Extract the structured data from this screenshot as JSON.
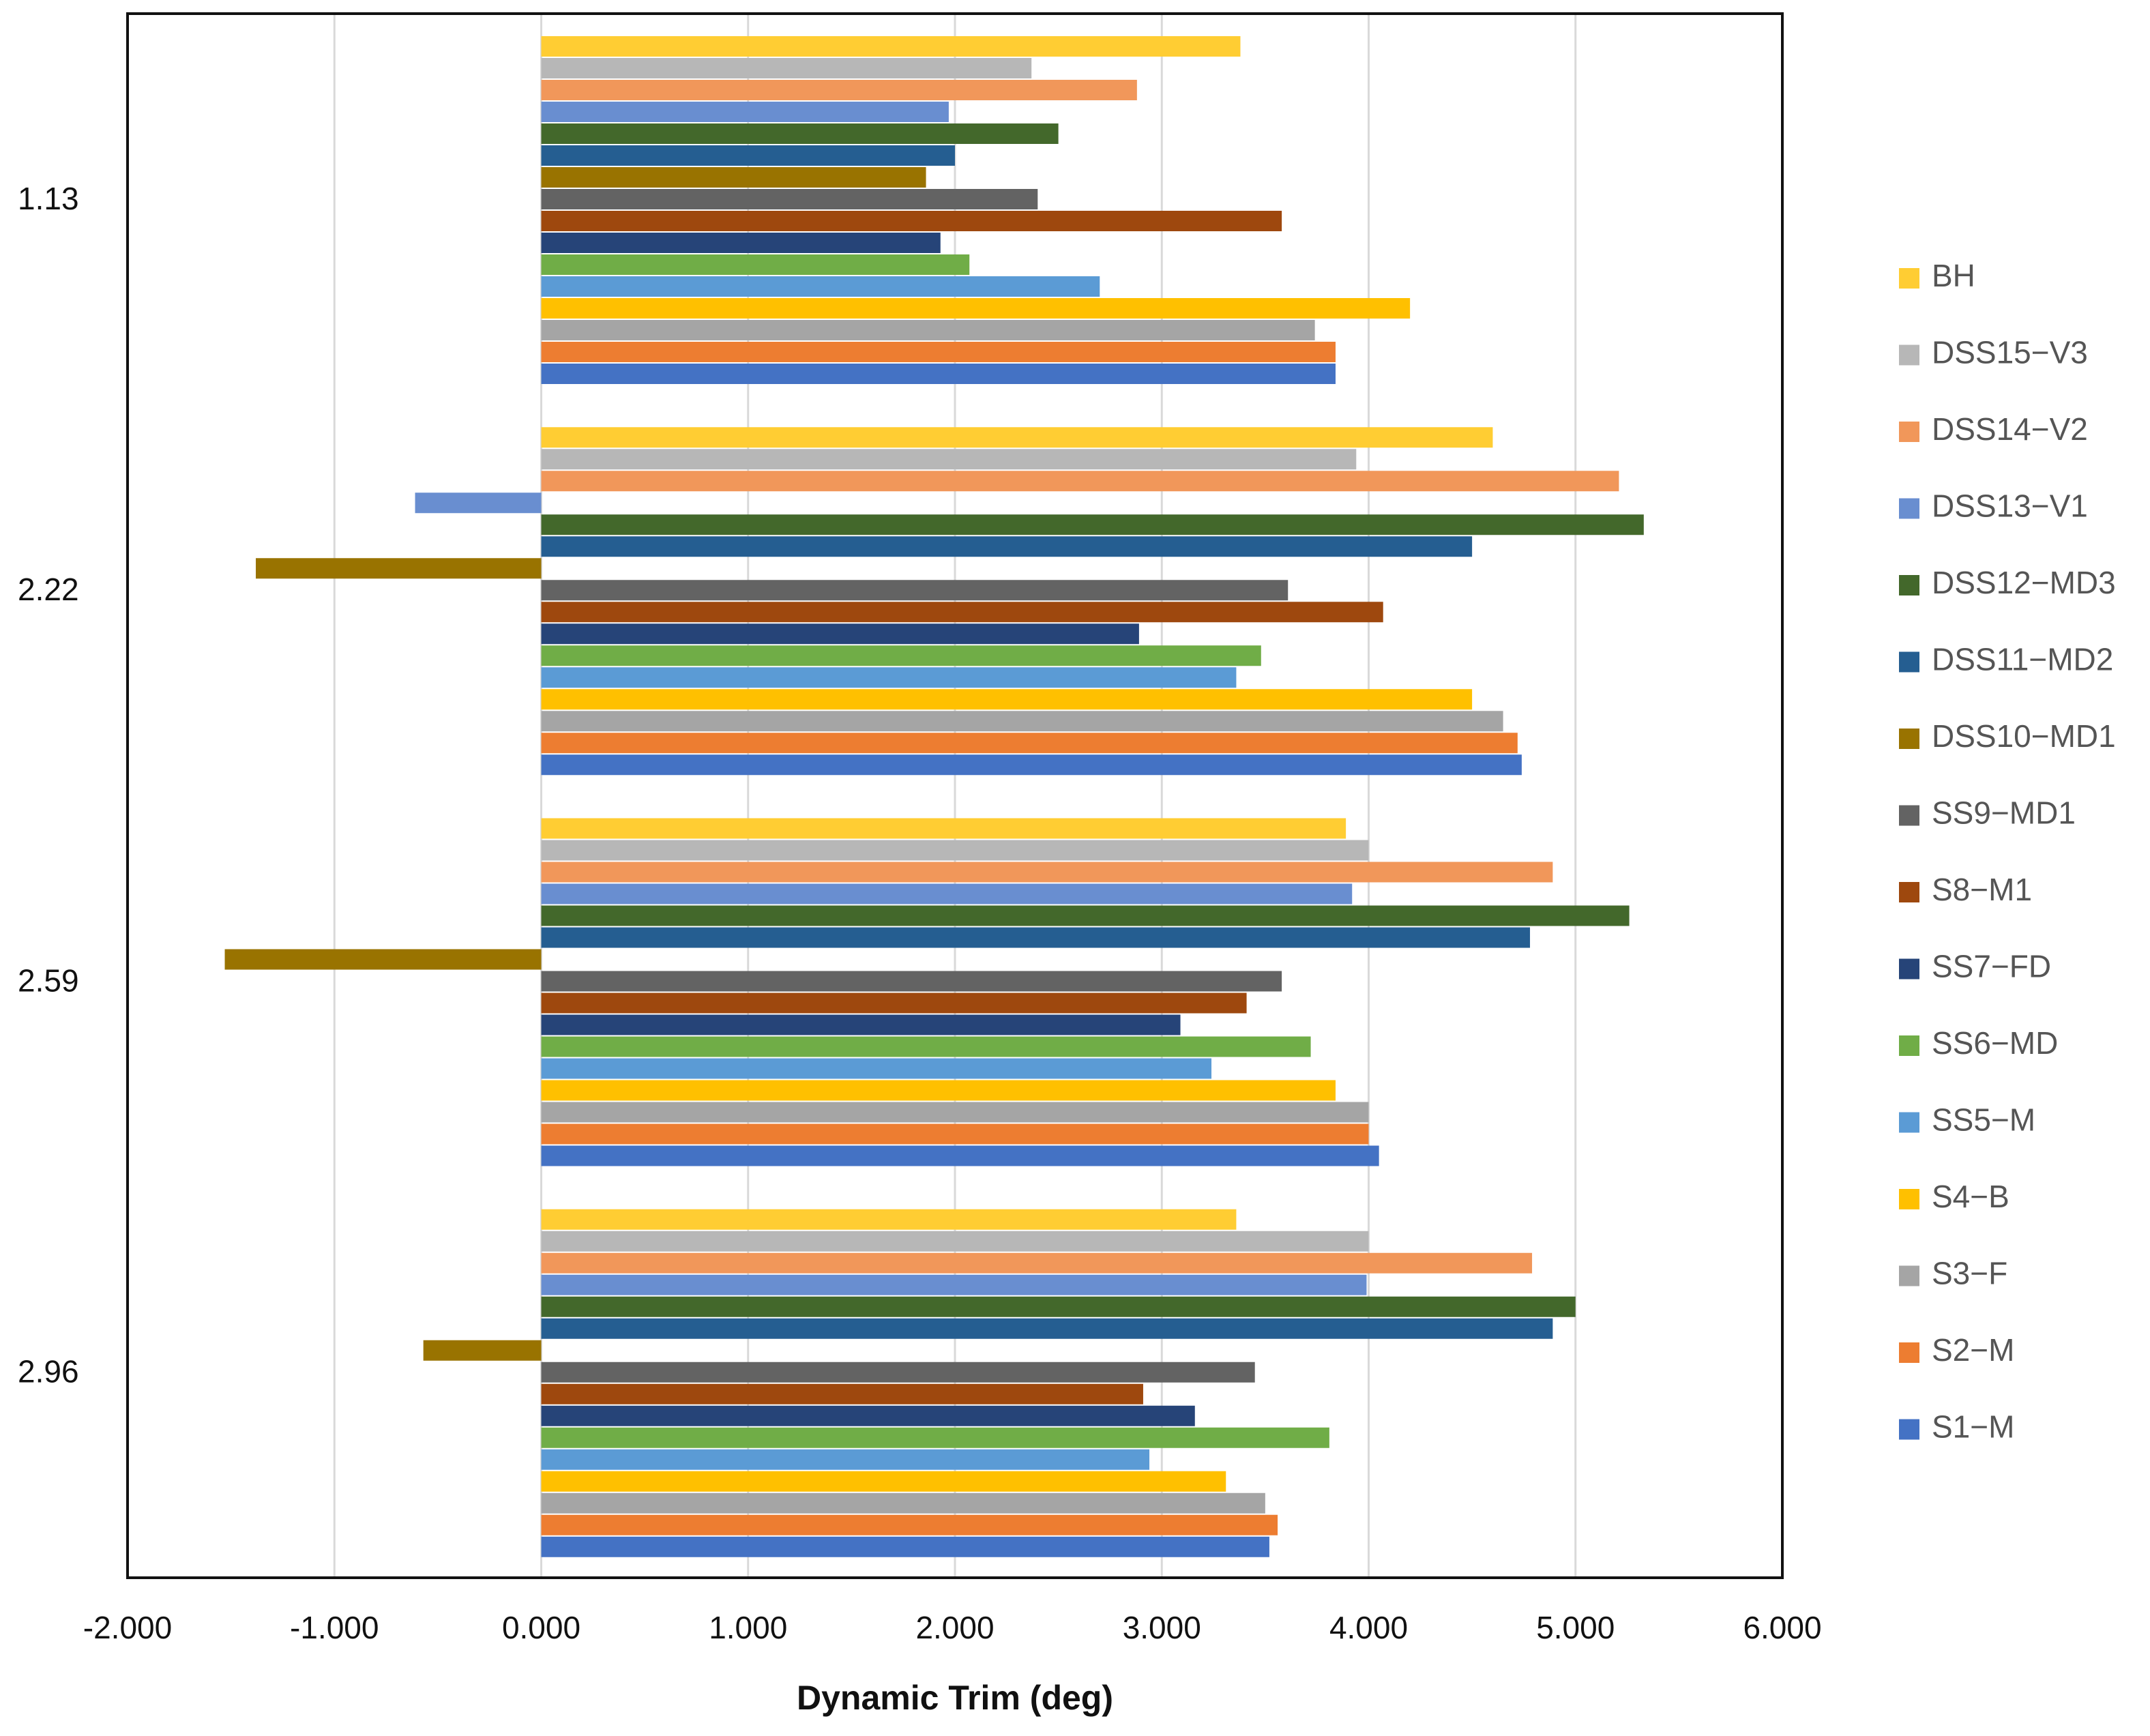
{
  "chart_data": {
    "type": "bar",
    "orientation": "horizontal",
    "title": "",
    "xlabel": "Dynamic Trim (deg)",
    "ylabel": "",
    "xlim": [
      -2,
      6
    ],
    "x_ticks": [
      -2,
      -1,
      0,
      1,
      2,
      3,
      4,
      5,
      6
    ],
    "x_tick_labels": [
      "-2.000",
      "-1.000",
      "0.000",
      "1.000",
      "2.000",
      "3.000",
      "4.000",
      "5.000",
      "6.000"
    ],
    "grid": "vertical",
    "legend_position": "right",
    "categories": [
      "1.13",
      "2.22",
      "2.59",
      "2.96"
    ],
    "series": [
      {
        "name": "S1−M",
        "color": "#4472C4",
        "values": [
          3.84,
          4.74,
          4.05,
          3.52
        ]
      },
      {
        "name": "S2−M",
        "color": "#ED7D31",
        "values": [
          3.84,
          4.72,
          4.0,
          3.56
        ]
      },
      {
        "name": "S3−F",
        "color": "#A5A5A5",
        "values": [
          3.74,
          4.65,
          4.0,
          3.5
        ]
      },
      {
        "name": "S4−B",
        "color": "#FFC000",
        "values": [
          4.2,
          4.5,
          3.84,
          3.31
        ]
      },
      {
        "name": "SS5−M",
        "color": "#5B9BD5",
        "values": [
          2.7,
          3.36,
          3.24,
          2.94
        ]
      },
      {
        "name": "SS6−MD",
        "color": "#70AD47",
        "values": [
          2.07,
          3.48,
          3.72,
          3.81
        ]
      },
      {
        "name": "SS7−FD",
        "color": "#264478",
        "values": [
          1.93,
          2.89,
          3.09,
          3.16
        ]
      },
      {
        "name": "S8−M1",
        "color": "#9E480E",
        "values": [
          3.58,
          4.07,
          3.41,
          2.91
        ]
      },
      {
        "name": "SS9−MD1",
        "color": "#636363",
        "values": [
          2.4,
          3.61,
          3.58,
          3.45
        ]
      },
      {
        "name": "DSS10−MD1",
        "color": "#997300",
        "values": [
          1.86,
          -1.38,
          -1.53,
          -0.57
        ]
      },
      {
        "name": "DSS11−MD2",
        "color": "#255E91",
        "values": [
          2.0,
          4.5,
          4.78,
          4.89
        ]
      },
      {
        "name": "DSS12−MD3",
        "color": "#43682B",
        "values": [
          2.5,
          5.33,
          5.26,
          5.0
        ]
      },
      {
        "name": "DSS13−V1",
        "color": "#698ED0",
        "values": [
          1.97,
          -0.61,
          3.92,
          3.99
        ]
      },
      {
        "name": "DSS14−V2",
        "color": "#F1975A",
        "values": [
          2.88,
          5.21,
          4.89,
          4.79
        ]
      },
      {
        "name": "DSS15−V3",
        "color": "#B7B7B7",
        "values": [
          2.37,
          3.94,
          4.0,
          4.0
        ]
      },
      {
        "name": "BH",
        "color": "#FFCD33",
        "values": [
          3.38,
          4.6,
          3.89,
          3.36
        ]
      }
    ]
  }
}
